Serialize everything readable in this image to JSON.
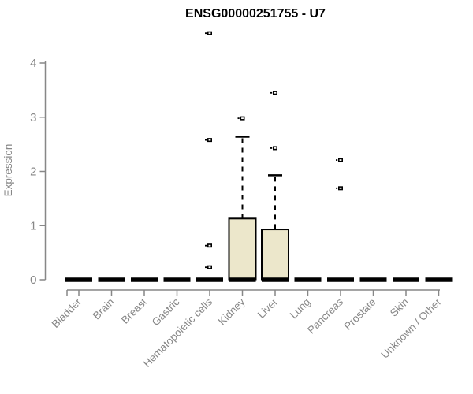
{
  "title": "ENSG00000251755 - U7",
  "chart_data": {
    "type": "boxplot",
    "title": "ENSG00000251755 - U7",
    "xlabel": "",
    "ylabel": "Expression",
    "ylim": [
      0,
      4.6
    ],
    "yticks": [
      0,
      1,
      2,
      3,
      4
    ],
    "grid": false,
    "legend": "none",
    "categories": [
      "Bladder",
      "Brain",
      "Breast",
      "Gastric",
      "Hematopoietic cells",
      "Kidney",
      "Liver",
      "Lung",
      "Pancreas",
      "Prostate",
      "Skin",
      "Unknown / Other"
    ],
    "series": [
      {
        "category": "Bladder",
        "low": 0,
        "q1": 0,
        "median": 0,
        "q3": 0,
        "high": 0,
        "outliers": []
      },
      {
        "category": "Brain",
        "low": 0,
        "q1": 0,
        "median": 0,
        "q3": 0,
        "high": 0,
        "outliers": []
      },
      {
        "category": "Breast",
        "low": 0,
        "q1": 0,
        "median": 0,
        "q3": 0,
        "high": 0,
        "outliers": []
      },
      {
        "category": "Gastric",
        "low": 0,
        "q1": 0,
        "median": 0,
        "q3": 0,
        "high": 0,
        "outliers": []
      },
      {
        "category": "Hematopoietic cells",
        "low": 0,
        "q1": 0,
        "median": 0,
        "q3": 0,
        "high": 0,
        "outliers": [
          4.55,
          2.58,
          0.63,
          0.23
        ]
      },
      {
        "category": "Kidney",
        "low": 0,
        "q1": 0,
        "median": 0,
        "q3": 1.13,
        "high": 2.64,
        "outliers": [
          2.98
        ]
      },
      {
        "category": "Liver",
        "low": 0,
        "q1": 0,
        "median": 0,
        "q3": 0.93,
        "high": 1.93,
        "outliers": [
          3.45,
          2.43
        ]
      },
      {
        "category": "Lung",
        "low": 0,
        "q1": 0,
        "median": 0,
        "q3": 0,
        "high": 0,
        "outliers": []
      },
      {
        "category": "Pancreas",
        "low": 0,
        "q1": 0,
        "median": 0,
        "q3": 0,
        "high": 0,
        "outliers": [
          2.21,
          1.69
        ]
      },
      {
        "category": "Prostate",
        "low": 0,
        "q1": 0,
        "median": 0,
        "q3": 0,
        "high": 0,
        "outliers": []
      },
      {
        "category": "Skin",
        "low": 0,
        "q1": 0,
        "median": 0,
        "q3": 0,
        "high": 0,
        "outliers": []
      },
      {
        "category": "Unknown / Other",
        "low": 0,
        "q1": 0,
        "median": 0,
        "q3": 0,
        "high": 0,
        "outliers": []
      }
    ],
    "colors": {
      "background": "#FFFFFF",
      "box_fill": "#ECE7CB",
      "box_stroke": "#000000",
      "axis": "#878787",
      "labels": "#878787",
      "title": "#000000"
    }
  }
}
